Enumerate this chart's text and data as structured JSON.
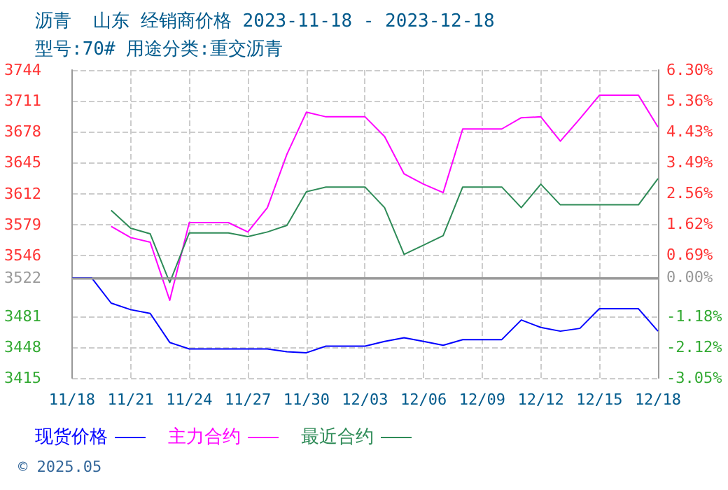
{
  "chart_data": {
    "type": "line",
    "title": "沥青  山东 经销商价格 2023-11-18 - 2023-12-18",
    "subtitle": "型号:70# 用途分类:重交沥青",
    "categories": [
      "11/18",
      null,
      null,
      "11/21",
      null,
      null,
      "11/24",
      null,
      null,
      "11/27",
      null,
      null,
      "11/30",
      null,
      null,
      "12/03",
      null,
      null,
      "12/06",
      null,
      null,
      "12/09",
      null,
      null,
      "12/12",
      null,
      null,
      "12/15",
      null,
      null,
      "12/18"
    ],
    "series": [
      {
        "name": "现货价格",
        "color": "#0000ff",
        "values": [
          3522,
          3522,
          3495,
          3488,
          3484,
          3453,
          3446,
          3446,
          3446,
          3446,
          3446,
          3443,
          3442,
          3449,
          3449,
          3449,
          3454,
          3458,
          3454,
          3450,
          3456,
          3456,
          3456,
          3477,
          3469,
          3465,
          3468,
          3489,
          3489,
          3489,
          3465
        ]
      },
      {
        "name": "主力合约",
        "color": "#ff00ff",
        "values": [
          null,
          null,
          3577,
          3565,
          3560,
          3498,
          3581,
          3581,
          3581,
          3571,
          3597,
          3654,
          3699,
          3694,
          3694,
          3694,
          3673,
          3633,
          3622,
          3613,
          3681,
          3681,
          3681,
          3693,
          3694,
          3668,
          3692,
          3717,
          3717,
          3717,
          3683
        ]
      },
      {
        "name": "最近合约",
        "color": "#2e8b57",
        "values": [
          null,
          null,
          3594,
          3575,
          3569,
          3517,
          3570,
          3570,
          3570,
          3566,
          3571,
          3578,
          3614,
          3619,
          3619,
          3619,
          3597,
          3547,
          3557,
          3567,
          3619,
          3619,
          3619,
          3597,
          3622,
          3600,
          3600,
          3600,
          3600,
          3600,
          3628
        ]
      }
    ],
    "ylim": [
      3415,
      3744
    ],
    "yticks": [
      3415,
      3448,
      3481,
      3522,
      3546,
      3579,
      3612,
      3645,
      3678,
      3711,
      3744
    ],
    "y2lim": [
      -3.05,
      6.3
    ],
    "y2ticks": [
      {
        "value": -3.05,
        "label": "-3.05%"
      },
      {
        "value": -2.12,
        "label": "-2.12%"
      },
      {
        "value": -1.18,
        "label": "-1.18%"
      },
      {
        "value": 0,
        "label": "0.00%"
      },
      {
        "value": 0.69,
        "label": "0.69%"
      },
      {
        "value": 1.62,
        "label": "1.62%"
      },
      {
        "value": 2.56,
        "label": "2.56%"
      },
      {
        "value": 3.49,
        "label": "3.49%"
      },
      {
        "value": 4.43,
        "label": "4.43%"
      },
      {
        "value": 5.36,
        "label": "5.36%"
      },
      {
        "value": 6.3,
        "label": "6.30%"
      }
    ],
    "ref_lines": [
      {
        "axis": "y",
        "value": 3522,
        "color": "#999999"
      }
    ],
    "annotations": [
      "© 2025.05"
    ],
    "grid": true,
    "legend": "bottom",
    "marker": "none",
    "line_style": "solid"
  }
}
